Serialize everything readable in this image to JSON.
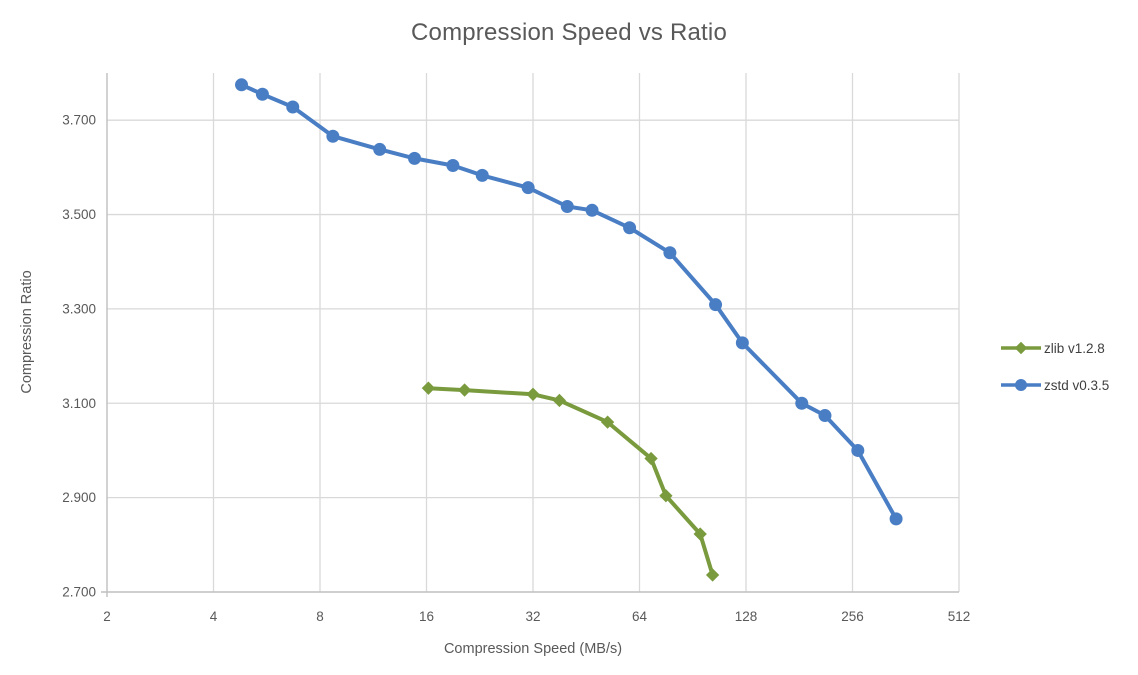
{
  "chart_data": {
    "type": "line",
    "title": "Compression Speed vs Ratio",
    "xlabel": "Compression Speed (MB/s)",
    "ylabel": "Compression Ratio",
    "x_scale": "log2",
    "xlim": [
      2,
      512
    ],
    "ylim": [
      2.7,
      3.8
    ],
    "x_ticks": [
      2,
      4,
      8,
      16,
      32,
      64,
      128,
      256,
      512
    ],
    "y_ticks": [
      2.7,
      2.9,
      3.1,
      3.3,
      3.5,
      3.7
    ],
    "y_tick_labels": [
      "2.700",
      "2.900",
      "3.100",
      "3.300",
      "3.500",
      "3.700"
    ],
    "grid": true,
    "legend_position": "right",
    "series": [
      {
        "id": "zlib",
        "name": "zlib v1.2.8",
        "color": "#7a9a3e",
        "marker": "diamond",
        "points": [
          [
            16.2,
            3.132
          ],
          [
            20.5,
            3.128
          ],
          [
            32,
            3.119
          ],
          [
            38,
            3.106
          ],
          [
            52,
            3.06
          ],
          [
            69,
            2.983
          ],
          [
            76,
            2.904
          ],
          [
            95,
            2.823
          ],
          [
            103,
            2.736
          ]
        ]
      },
      {
        "id": "zstd",
        "name": "zstd v0.3.5",
        "color": "#4a7ec4",
        "marker": "circle",
        "points": [
          [
            4.8,
            3.775
          ],
          [
            5.5,
            3.755
          ],
          [
            6.7,
            3.728
          ],
          [
            8.7,
            3.666
          ],
          [
            11.8,
            3.638
          ],
          [
            14.8,
            3.619
          ],
          [
            19,
            3.604
          ],
          [
            23,
            3.583
          ],
          [
            31,
            3.557
          ],
          [
            40,
            3.517
          ],
          [
            47,
            3.509
          ],
          [
            60,
            3.472
          ],
          [
            78,
            3.419
          ],
          [
            105,
            3.309
          ],
          [
            125,
            3.228
          ],
          [
            184,
            3.1
          ],
          [
            214,
            3.074
          ],
          [
            265,
            3.0
          ],
          [
            340,
            2.855
          ]
        ]
      }
    ],
    "style": {
      "grid_color": "#d9d9d9",
      "axis_color": "#bfbfbf",
      "tick_label_color": "#595959",
      "title_color": "#595959",
      "legend_text_color": "#3f3f3f",
      "background": "#ffffff"
    }
  }
}
